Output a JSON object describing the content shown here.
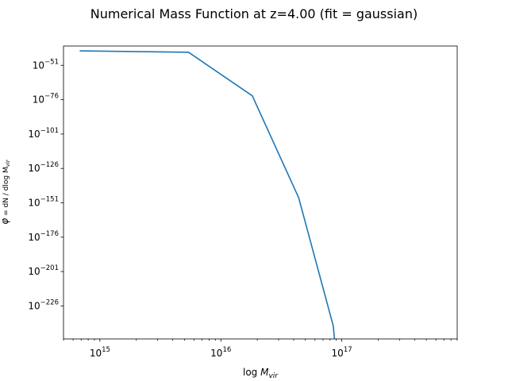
{
  "chart_data": {
    "type": "line",
    "title": "Numerical Mass Function at z=4.00 (fit = gaussian)",
    "xlabel": "log M_vir",
    "ylabel": "φ = dN / dlog M_vir",
    "x_scale": "log",
    "y_scale": "log",
    "xlim": [
      500000000000000.0,
      9e+17
    ],
    "ylim_log10": [
      -250,
      -37
    ],
    "grid": false,
    "legend": "none",
    "series_color": "#1f77b4",
    "x_ticks": [
      {
        "value": 1000000000000000.0,
        "label": "10",
        "exp": "15"
      },
      {
        "value": 1e+16,
        "label": "10",
        "exp": "16"
      },
      {
        "value": 1e+17,
        "label": "10",
        "exp": "17"
      }
    ],
    "y_ticks_log10": [
      {
        "value": -51,
        "label": "10",
        "exp": "−51"
      },
      {
        "value": -76,
        "label": "10",
        "exp": "−76"
      },
      {
        "value": -101,
        "label": "10",
        "exp": "−101"
      },
      {
        "value": -126,
        "label": "10",
        "exp": "−126"
      },
      {
        "value": -151,
        "label": "10",
        "exp": "−151"
      },
      {
        "value": -176,
        "label": "10",
        "exp": "−176"
      },
      {
        "value": -201,
        "label": "10",
        "exp": "−201"
      },
      {
        "value": -226,
        "label": "10",
        "exp": "−226"
      }
    ],
    "series": [
      {
        "x": [
          680000000000000.0,
          5400000000000000.0,
          1.82e+16,
          4.4e+16,
          8.5e+16,
          8.7e+16
        ],
        "y_log10": [
          -40.5,
          -41.5,
          -73.2,
          -147.3,
          -240.5,
          -250
        ]
      }
    ]
  }
}
